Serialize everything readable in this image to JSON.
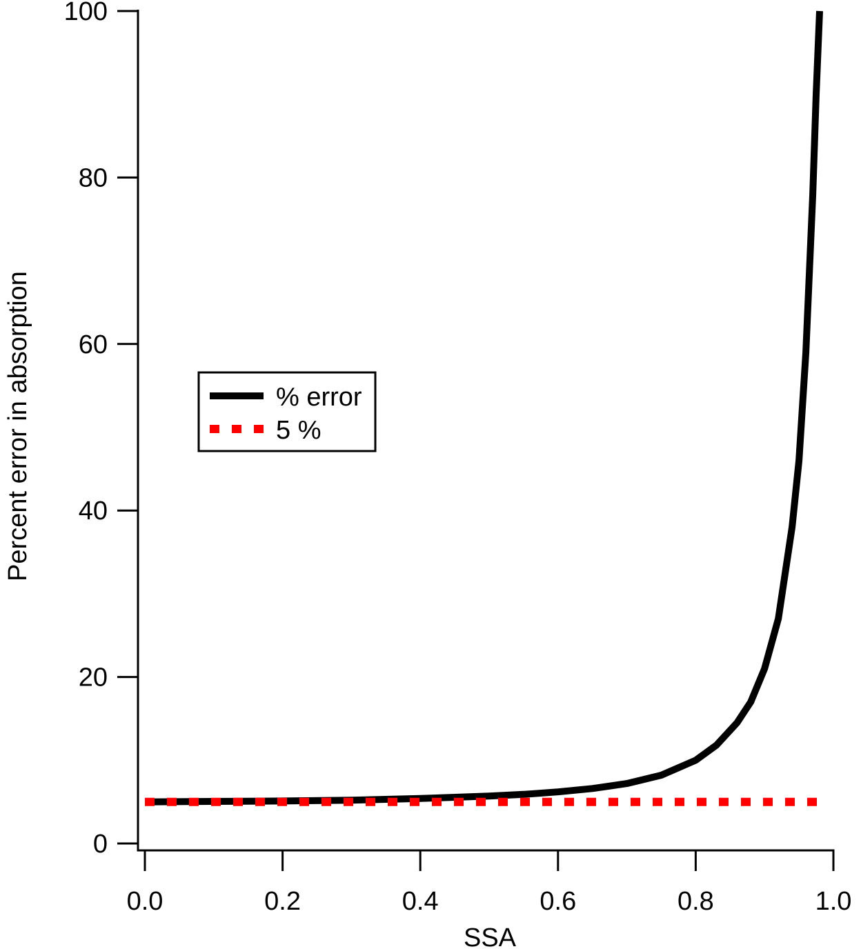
{
  "chart_data": {
    "type": "line",
    "xlabel": "SSA",
    "ylabel": "Percent error in absorption",
    "xlim": [
      0.0,
      1.0
    ],
    "ylim": [
      0,
      100
    ],
    "x_ticks": [
      "0.0",
      "0.2",
      "0.4",
      "0.6",
      "0.8",
      "1.0"
    ],
    "y_ticks": [
      "0",
      "20",
      "40",
      "60",
      "80",
      "100"
    ],
    "grid": false,
    "legend_position": "center-left",
    "series": [
      {
        "name": "% error",
        "color": "#000000",
        "style": "solid",
        "x": [
          0.0,
          0.1,
          0.2,
          0.3,
          0.4,
          0.5,
          0.55,
          0.6,
          0.65,
          0.7,
          0.75,
          0.8,
          0.83,
          0.86,
          0.88,
          0.9,
          0.92,
          0.94,
          0.95,
          0.96,
          0.97,
          0.975,
          0.98
        ],
        "y": [
          5.0,
          5.05,
          5.1,
          5.2,
          5.4,
          5.7,
          5.9,
          6.2,
          6.6,
          7.2,
          8.2,
          10.0,
          11.8,
          14.5,
          17.0,
          21.0,
          27.0,
          38.0,
          46.0,
          59.0,
          78.0,
          90.0,
          100.0
        ]
      },
      {
        "name": "5 %",
        "color": "#ff0000",
        "style": "dotted",
        "x": [
          0.0,
          0.98
        ],
        "y": [
          5.0,
          5.0
        ]
      }
    ]
  }
}
